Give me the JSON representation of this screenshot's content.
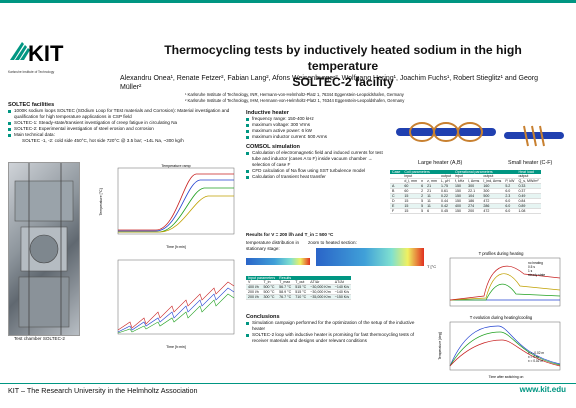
{
  "logo": {
    "text": "KIT",
    "subtitle": "Karlsruhe Institute of Technology"
  },
  "title": {
    "line1": "Thermocycling tests by inductively heated sodium in the high temperature",
    "line2": "SOLTEC-2 facility"
  },
  "authors": "Alexandru Onea¹, Renate Fetzer², Fabian Lang², Afons Weisenburger², Wolfgang Hering¹, Joachim Fuchs¹, Robert Stieglitz¹ and Georg Müller²",
  "affiliations": [
    "¹  Karlsruhe Institute of Technology, INR, Hermann-von-Helmholtz-Platz 1, 76344 Eggenstein-Leopoldshafen, Germany",
    "²  Karlsruhe Institute of Technology, IHM, Hermann-von-Helmholtz-Platz 1, 76344 Eggenstein-Leopoldshafen, Germany"
  ],
  "soltec": {
    "heading": "SOLTEC facilities",
    "bullets": [
      "1000K sodium loops SOLTEC (SOdium Loop for TEst materials and Corrosion): Material investigation and qualification for high temperature applications in CSP field",
      "SOLTEC-1: Steady-state/transient investigation of creep fatigue in circulating Na",
      "SOLTEC-2: Experimental investigation of steel erosion and corrosion",
      "Main technical data:"
    ],
    "techdata": "SOLTEC -1, -2: cold side 450°C, hot side 720°C @ 3.5 bar; ~14L Na, ~300 kg/h",
    "photo_caption": "Test chamber SOLTEC-2"
  },
  "chart1": {
    "title": "Temperature ramp",
    "xlabel": "Time [h:min]",
    "ylabel": "Temperature [°C]"
  },
  "chart2": {
    "xlabel": "Time [h:min]"
  },
  "heater": {
    "heading": "Inductive heater",
    "bullets": [
      "frequency range: 150-400 kHz",
      "maximum voltage: 300 Vrms",
      "maximum active power: 6 kW",
      "maximum inductor current: 500 Arms"
    ],
    "large_label": "Large heater (A,B)",
    "small_label": "Small heater (C-F)"
  },
  "comsol": {
    "heading": "COMSOL simulation",
    "bullets": [
      "Calculation of electromagnetic field and induced currents for test tube and inductor (cases A to F) inside vacuum chamber → selection of case F",
      "CFD calculation of Na flow using SST turbulence model",
      "Calculation of transient heat transfer"
    ]
  },
  "results_heading": "Results for V = 200 l/h and T_in = 500 °C",
  "dist_caption": "temperature distribution in stationary stage:",
  "zoom_caption": "zoom to heated section:",
  "colorbar_label": "T [°C]",
  "params_table": {
    "groups": [
      "Case",
      "Coil parameters",
      "Operational parameters",
      "Heat load"
    ],
    "subgroups": [
      "",
      "input",
      "output",
      "input",
      "output",
      "output"
    ],
    "headers": [
      "",
      "d_i, mm",
      "n",
      "z, mm",
      "L, µH",
      "f, kHz",
      "I, Arms",
      "I_ind, Arms",
      "P, kW",
      "Q_s, MW/m²"
    ],
    "rows": [
      [
        "A",
        "60",
        "6",
        "21",
        "1.75",
        "150",
        "300",
        "160",
        "5.2",
        "0.33"
      ],
      [
        "B",
        "60",
        "2",
        "21",
        "0.61",
        "150",
        "22.1",
        "300",
        "6.0",
        "0.37"
      ],
      [
        "C",
        "15",
        "2",
        "11",
        "0.22",
        "150",
        "104",
        "500",
        "2.3",
        "0.49"
      ],
      [
        "D",
        "15",
        "5",
        "11",
        "0.44",
        "150",
        "186",
        "472",
        "6.0",
        "0.84"
      ],
      [
        "E",
        "15",
        "5",
        "11",
        "0.42",
        "400",
        "274",
        "286",
        "6.0",
        "0.89"
      ],
      [
        "F",
        "15",
        "5",
        "6",
        "0.45",
        "150",
        "200",
        "472",
        "6.0",
        "1.08"
      ]
    ]
  },
  "results_table": {
    "groups": [
      "Input parameters",
      "Results"
    ],
    "headers": [
      "V",
      "T_in",
      "T_max",
      "T_out",
      "ΔT/Δr",
      "ΔT/Δt"
    ],
    "rows": [
      [
        "400 l/h",
        "500 °C",
        "56.7 °C",
        "515 °C",
        "~30,000 K/m",
        "~140 K/s"
      ],
      [
        "200 l/h",
        "500 °C",
        "58.9 °C",
        "515 °C",
        "~30,000 K/m",
        "~140 K/s"
      ],
      [
        "200 l/h",
        "300 °C",
        "76.7 °C",
        "710 °C",
        "~35,000 K/m",
        "~150 K/s"
      ]
    ]
  },
  "conclusions": {
    "heading": "Conclusions",
    "bullets": [
      "Simulation campaign performed for the optimization of the setup of the inductive heater",
      "SOLTEC-2 loop with inductive heater is promising for fast thermocycling tests of receiver materials and designs under relevant conditions"
    ]
  },
  "tprofile": {
    "title": "T profiles during heating",
    "legend": [
      "no heating",
      "0.5 s",
      "1 s",
      "steady state"
    ]
  },
  "tevolution": {
    "title": "T evolution during heating/cooling",
    "xlabel": "Time after switching on",
    "ylabel": "Temperature [deg]",
    "legend": [
      "x = -0.02 m",
      "x = 0 m",
      "x = 0.02 m"
    ]
  },
  "footer": {
    "left": "KIT – The Research University in the Helmholtz Association",
    "right": "www.kit.edu"
  },
  "colors": {
    "accent": "#009682",
    "table_header": "#009682"
  }
}
